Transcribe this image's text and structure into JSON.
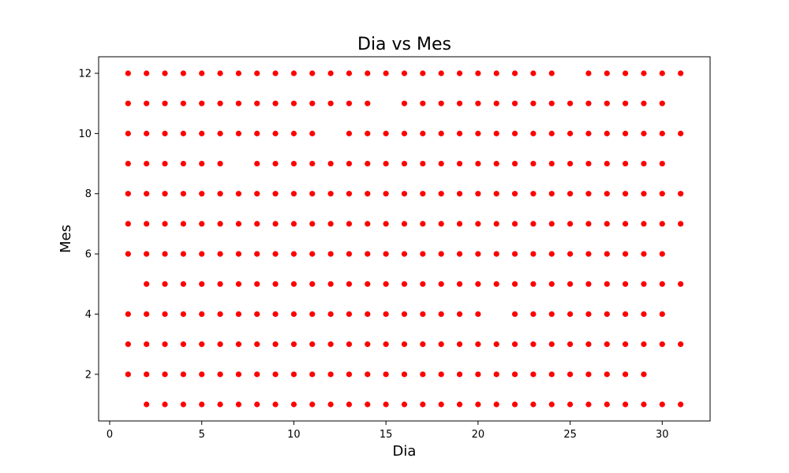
{
  "chart_data": {
    "type": "scatter",
    "title": "Dia vs Mes",
    "xlabel": "Dia",
    "ylabel": "Mes",
    "xlim": [
      -0.6,
      32.6
    ],
    "ylim": [
      0.45,
      12.55
    ],
    "xticks": [
      0,
      5,
      10,
      15,
      20,
      25,
      30
    ],
    "yticks": [
      2,
      4,
      6,
      8,
      10,
      12
    ],
    "grid": false,
    "marker_color": "#ff0000",
    "rows": [
      {
        "mes": 1,
        "dias": [
          2,
          3,
          4,
          5,
          6,
          7,
          8,
          9,
          10,
          11,
          12,
          13,
          14,
          15,
          16,
          17,
          18,
          19,
          20,
          21,
          22,
          23,
          24,
          25,
          26,
          27,
          28,
          29,
          30,
          31
        ]
      },
      {
        "mes": 2,
        "dias": [
          1,
          2,
          3,
          4,
          5,
          6,
          7,
          8,
          9,
          10,
          11,
          12,
          13,
          14,
          15,
          16,
          17,
          18,
          19,
          20,
          21,
          22,
          23,
          24,
          25,
          26,
          27,
          28,
          29
        ]
      },
      {
        "mes": 3,
        "dias": [
          1,
          2,
          3,
          4,
          5,
          6,
          7,
          8,
          9,
          10,
          11,
          12,
          13,
          14,
          15,
          16,
          17,
          18,
          19,
          20,
          21,
          22,
          23,
          24,
          25,
          26,
          27,
          28,
          29,
          30,
          31
        ]
      },
      {
        "mes": 4,
        "dias": [
          1,
          2,
          3,
          4,
          5,
          6,
          7,
          8,
          9,
          10,
          11,
          12,
          13,
          14,
          15,
          16,
          17,
          18,
          19,
          20,
          22,
          23,
          24,
          25,
          26,
          27,
          28,
          29,
          30
        ]
      },
      {
        "mes": 5,
        "dias": [
          2,
          3,
          4,
          5,
          6,
          7,
          8,
          9,
          10,
          11,
          12,
          13,
          14,
          15,
          16,
          17,
          18,
          19,
          20,
          21,
          22,
          23,
          24,
          25,
          26,
          27,
          28,
          29,
          30,
          31
        ]
      },
      {
        "mes": 6,
        "dias": [
          1,
          2,
          3,
          4,
          5,
          6,
          7,
          8,
          9,
          10,
          11,
          12,
          13,
          14,
          15,
          16,
          17,
          18,
          19,
          20,
          21,
          22,
          23,
          24,
          25,
          26,
          27,
          28,
          29,
          30
        ]
      },
      {
        "mes": 7,
        "dias": [
          1,
          2,
          3,
          4,
          5,
          6,
          7,
          8,
          9,
          10,
          11,
          12,
          13,
          14,
          15,
          16,
          17,
          18,
          19,
          20,
          21,
          22,
          23,
          24,
          25,
          26,
          27,
          28,
          29,
          30,
          31
        ]
      },
      {
        "mes": 8,
        "dias": [
          1,
          2,
          3,
          4,
          5,
          6,
          7,
          8,
          9,
          10,
          11,
          12,
          13,
          14,
          15,
          16,
          17,
          18,
          19,
          20,
          21,
          22,
          23,
          24,
          25,
          26,
          27,
          28,
          29,
          30,
          31
        ]
      },
      {
        "mes": 9,
        "dias": [
          1,
          2,
          3,
          4,
          5,
          6,
          8,
          9,
          10,
          11,
          12,
          13,
          14,
          15,
          16,
          17,
          18,
          19,
          20,
          21,
          22,
          23,
          24,
          25,
          26,
          27,
          28,
          29,
          30
        ]
      },
      {
        "mes": 10,
        "dias": [
          1,
          2,
          3,
          4,
          5,
          6,
          7,
          8,
          9,
          10,
          11,
          13,
          14,
          15,
          16,
          17,
          18,
          19,
          20,
          21,
          22,
          23,
          24,
          25,
          26,
          27,
          28,
          29,
          30,
          31
        ]
      },
      {
        "mes": 11,
        "dias": [
          1,
          2,
          3,
          4,
          5,
          6,
          7,
          8,
          9,
          10,
          11,
          12,
          13,
          14,
          16,
          17,
          18,
          19,
          20,
          21,
          22,
          23,
          24,
          25,
          26,
          27,
          28,
          29,
          30
        ]
      },
      {
        "mes": 12,
        "dias": [
          1,
          2,
          3,
          4,
          5,
          6,
          7,
          8,
          9,
          10,
          11,
          12,
          13,
          14,
          15,
          16,
          17,
          18,
          19,
          20,
          21,
          22,
          23,
          24,
          26,
          27,
          28,
          29,
          30,
          31
        ]
      }
    ]
  }
}
